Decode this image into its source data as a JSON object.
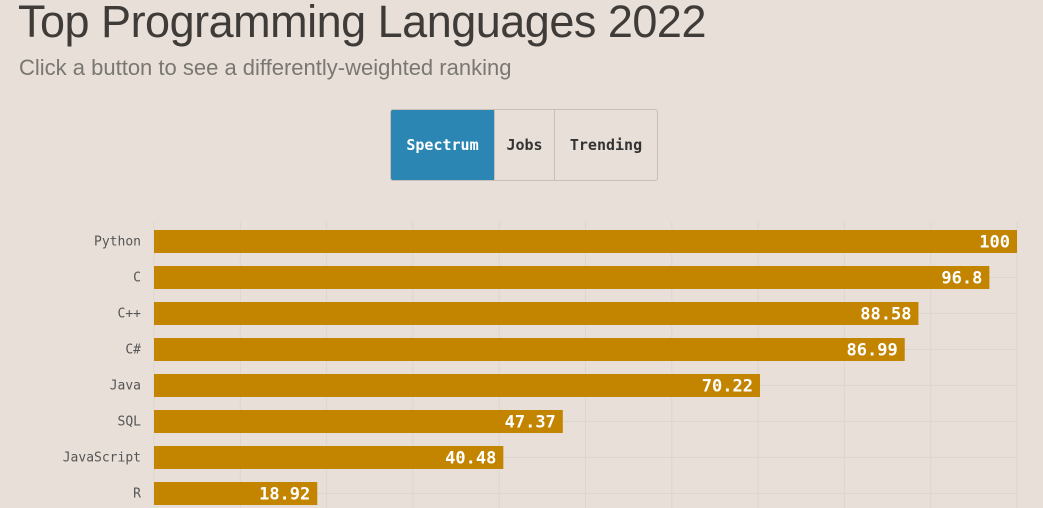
{
  "header": {
    "title": "Top Programming Languages 2022",
    "subtitle": "Click a button to see a differently-weighted ranking"
  },
  "buttons": [
    {
      "label": "Spectrum",
      "active": true
    },
    {
      "label": "Jobs",
      "active": false
    },
    {
      "label": "Trending",
      "active": false
    }
  ],
  "colors": {
    "background": "#e8e0d8",
    "bar": "#c38400",
    "active_button": "#2b86b4",
    "grid": "#dcd6d0"
  },
  "chart_data": {
    "type": "bar",
    "orientation": "horizontal",
    "categories": [
      "Python",
      "C",
      "C++",
      "C#",
      "Java",
      "SQL",
      "JavaScript",
      "R"
    ],
    "values": [
      100,
      96.8,
      88.58,
      86.99,
      70.22,
      47.37,
      40.48,
      18.92
    ],
    "value_labels": [
      "100",
      "96.8",
      "88.58",
      "86.99",
      "70.22",
      "47.37",
      "40.48",
      "18.92"
    ],
    "xlim": [
      0,
      100
    ],
    "grid": true
  }
}
